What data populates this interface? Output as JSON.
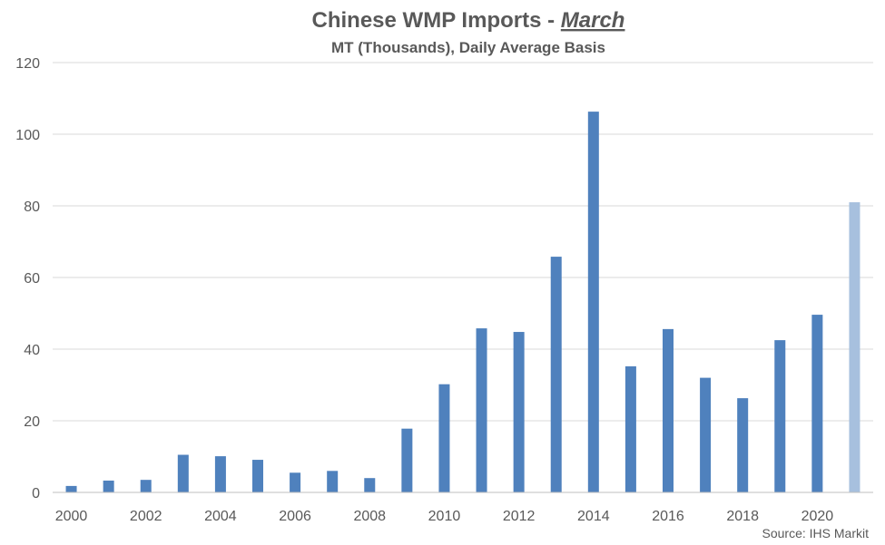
{
  "chart_data": {
    "type": "bar",
    "title": "Chinese WMP Imports - ",
    "title_emphasis": "March",
    "subtitle": "MT (Thousands), Daily Average Basis",
    "source": "Source: IHS Markit",
    "categories": [
      "2000",
      "2001",
      "2002",
      "2003",
      "2004",
      "2005",
      "2006",
      "2007",
      "2008",
      "2009",
      "2010",
      "2011",
      "2012",
      "2013",
      "2014",
      "2015",
      "2016",
      "2017",
      "2018",
      "2019",
      "2020",
      "2021"
    ],
    "x_tick_labels": [
      "2000",
      "2002",
      "2004",
      "2006",
      "2008",
      "2010",
      "2012",
      "2014",
      "2016",
      "2018",
      "2020"
    ],
    "values": [
      1.8,
      3.3,
      3.5,
      10.5,
      10.1,
      9.1,
      5.5,
      6.0,
      4.0,
      17.8,
      30.2,
      45.8,
      44.8,
      65.8,
      106.3,
      35.2,
      45.6,
      32.0,
      26.3,
      42.5,
      49.6,
      81.0
    ],
    "highlight_last": true,
    "ylim": [
      0,
      120
    ],
    "yticks": [
      0,
      20,
      40,
      60,
      80,
      100,
      120
    ],
    "grid": true,
    "colors": {
      "bar": "#4f81bd",
      "bar_highlight": "#a7c0de"
    }
  }
}
